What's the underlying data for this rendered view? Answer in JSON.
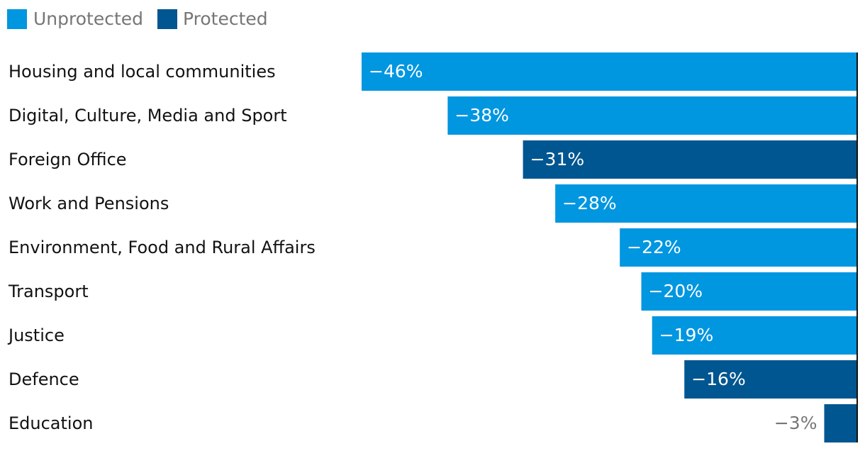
{
  "chart_data": {
    "type": "bar",
    "orientation": "horizontal",
    "title": "",
    "xlabel": "",
    "ylabel": "",
    "xlim": [
      -46,
      0
    ],
    "legend": {
      "placement": "top-left",
      "entries": [
        {
          "name": "Unprotected",
          "color": "#0096e0"
        },
        {
          "name": "Protected",
          "color": "#005690"
        }
      ]
    },
    "categories": [
      "Housing and local communities",
      "Digital, Culture, Media and Sport",
      "Foreign Office",
      "Work and Pensions",
      "Environment, Food and Rural Affairs",
      "Transport",
      "Justice",
      "Defence",
      "Education"
    ],
    "values": [
      -46,
      -38,
      -31,
      -28,
      -22,
      -20,
      -19,
      -16,
      -3
    ],
    "labels": [
      "−46%",
      "−38%",
      "−31%",
      "−28%",
      "−22%",
      "−20%",
      "−19%",
      "−16%",
      "−3%"
    ],
    "groups": [
      "Unprotected",
      "Unprotected",
      "Protected",
      "Unprotected",
      "Unprotected",
      "Unprotected",
      "Unprotected",
      "Protected",
      "Protected"
    ]
  }
}
